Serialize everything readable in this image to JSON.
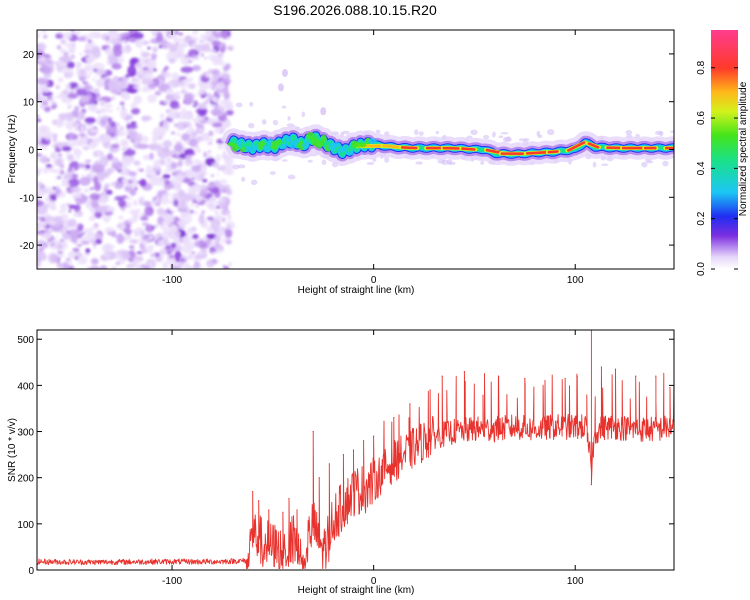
{
  "chart_data": [
    {
      "type": "heatmap",
      "title": "S196.2026.088.10.15.R20",
      "xlabel": "Height of straight line (km)",
      "ylabel": "Frequency (Hz)",
      "xlim": [
        -167,
        149
      ],
      "ylim": [
        -25,
        25
      ],
      "xticks": [
        -100,
        0,
        100
      ],
      "yticks": [
        -20,
        -10,
        0,
        10,
        20
      ],
      "noise_region_x": [
        -167,
        -71
      ],
      "ridge": {
        "x": [
          -71,
          -66,
          -60,
          -55,
          -50,
          -45,
          -40,
          -35,
          -30,
          -25,
          -20,
          -15,
          -10,
          -5,
          0,
          10,
          20,
          30,
          40,
          50,
          55,
          60,
          70,
          80,
          90,
          100,
          105,
          110,
          120,
          130,
          140,
          149
        ],
        "freq": [
          1.5,
          1.0,
          0.5,
          1.0,
          0.5,
          1.5,
          2.0,
          1.0,
          2.5,
          1.5,
          0.5,
          -0.5,
          0.5,
          1.0,
          1.0,
          0.5,
          0.3,
          0.3,
          0.3,
          0.0,
          0.0,
          -0.8,
          -1.0,
          -0.7,
          -0.5,
          0.0,
          1.5,
          0.5,
          0.3,
          0.3,
          0.3,
          0.3
        ]
      },
      "colorbar": {
        "label": "Normalized spectral amplitude",
        "range": [
          0.0,
          0.95
        ],
        "ticks": [
          0.0,
          0.2,
          0.4,
          0.6,
          0.8
        ],
        "tick_labels": [
          "0.0",
          "0.2",
          "0.4",
          "0.6",
          "0.8"
        ],
        "colormap": "rainbow (white-violet-blue-cyan-green-yellow-red-pink)"
      }
    },
    {
      "type": "line",
      "xlabel": "Height of straight line (km)",
      "ylabel": "SNR (10 * v/v)",
      "xlim": [
        -167,
        149
      ],
      "ylim": [
        0,
        520
      ],
      "xticks": [
        -100,
        0,
        100
      ],
      "yticks": [
        0,
        100,
        200,
        300,
        400,
        500
      ],
      "color": "#e8322d",
      "trend": {
        "x": [
          -167,
          -140,
          -110,
          -80,
          -63,
          -60,
          -55,
          -50,
          -45,
          -40,
          -35,
          -30,
          -25,
          -20,
          -15,
          -10,
          -5,
          0,
          5,
          10,
          15,
          20,
          25,
          30,
          40,
          50,
          60,
          70,
          80,
          90,
          100,
          105,
          108,
          110,
          115,
          120,
          130,
          140,
          149
        ],
        "y": [
          18,
          17,
          18,
          18,
          20,
          80,
          60,
          50,
          40,
          70,
          30,
          100,
          40,
          110,
          140,
          170,
          175,
          190,
          215,
          235,
          250,
          265,
          280,
          290,
          300,
          305,
          305,
          310,
          305,
          310,
          310,
          310,
          230,
          300,
          310,
          310,
          305,
          305,
          310
        ]
      },
      "spikes": [
        {
          "x": -60,
          "y": 170
        },
        {
          "x": -57,
          "y": 150
        },
        {
          "x": -52,
          "y": 130
        },
        {
          "x": -45,
          "y": 125
        },
        {
          "x": -42,
          "y": 155
        },
        {
          "x": -38,
          "y": 130
        },
        {
          "x": -30,
          "y": 300
        },
        {
          "x": -27,
          "y": 200
        },
        {
          "x": -22,
          "y": 230
        },
        {
          "x": -15,
          "y": 250
        },
        {
          "x": -10,
          "y": 260
        },
        {
          "x": -5,
          "y": 280
        },
        {
          "x": 0,
          "y": 290
        },
        {
          "x": 10,
          "y": 330
        },
        {
          "x": 18,
          "y": 360
        },
        {
          "x": 28,
          "y": 390
        },
        {
          "x": 34,
          "y": 420
        },
        {
          "x": 45,
          "y": 430
        },
        {
          "x": 55,
          "y": 425
        },
        {
          "x": 62,
          "y": 420
        },
        {
          "x": 75,
          "y": 415
        },
        {
          "x": 85,
          "y": 410
        },
        {
          "x": 95,
          "y": 415
        },
        {
          "x": 101,
          "y": 420
        },
        {
          "x": 108,
          "y": 520
        },
        {
          "x": 113,
          "y": 440
        },
        {
          "x": 120,
          "y": 435
        },
        {
          "x": 130,
          "y": 420
        },
        {
          "x": 140,
          "y": 420
        },
        {
          "x": 147,
          "y": 395
        }
      ],
      "dip": {
        "x": 108,
        "y": 185
      }
    }
  ]
}
